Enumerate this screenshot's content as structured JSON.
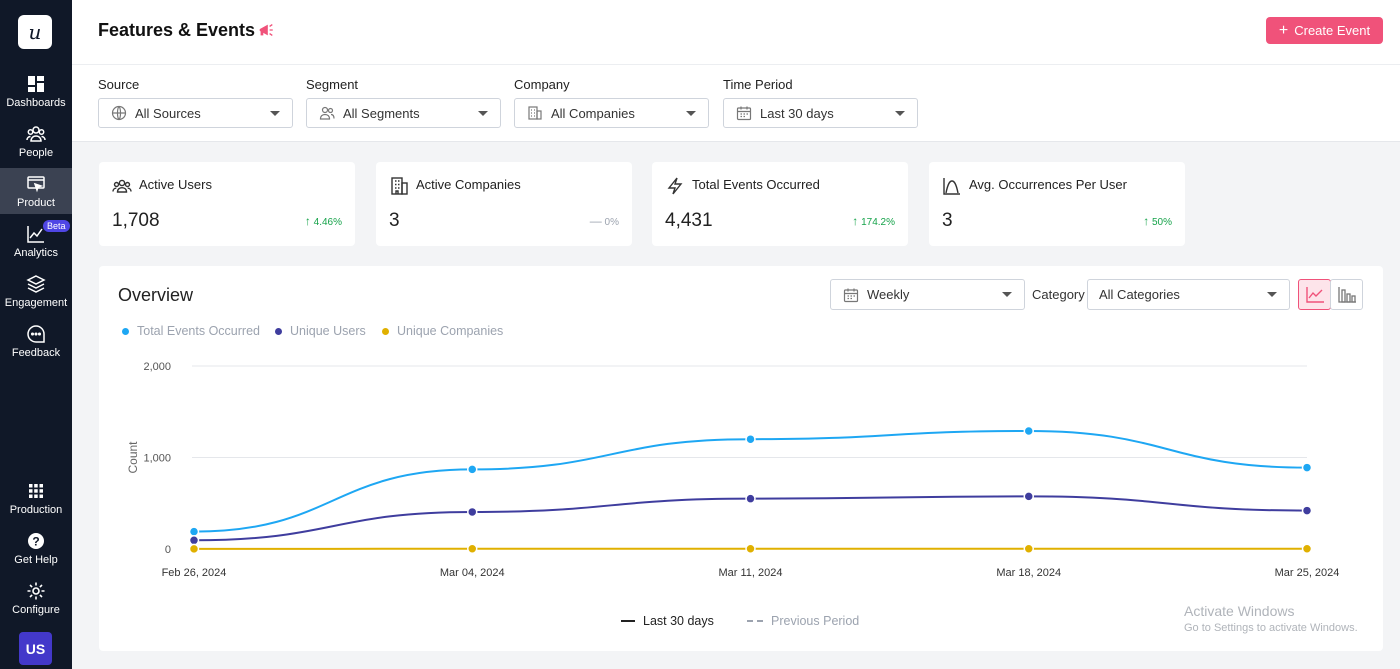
{
  "app": {
    "logo_text": "u",
    "user_initials": "US"
  },
  "sidebar": {
    "items": [
      {
        "label": "Dashboards",
        "icon": "dashboard-icon"
      },
      {
        "label": "People",
        "icon": "people-icon"
      },
      {
        "label": "Product",
        "icon": "product-icon",
        "active": true
      },
      {
        "label": "Analytics",
        "icon": "analytics-icon",
        "badge": "Beta"
      },
      {
        "label": "Engagement",
        "icon": "layers-icon"
      },
      {
        "label": "Feedback",
        "icon": "chat-icon"
      }
    ],
    "bottom": [
      {
        "label": "Production",
        "icon": "grid-icon"
      },
      {
        "label": "Get Help",
        "icon": "help-icon"
      },
      {
        "label": "Configure",
        "icon": "gear-icon"
      }
    ]
  },
  "header": {
    "title": "Features & Events",
    "create_label": "Create Event"
  },
  "filters": [
    {
      "label": "Source",
      "value": "All Sources",
      "icon": "globe-icon"
    },
    {
      "label": "Segment",
      "value": "All Segments",
      "icon": "users-icon"
    },
    {
      "label": "Company",
      "value": "All Companies",
      "icon": "building-icon"
    },
    {
      "label": "Time Period",
      "value": "Last 30 days",
      "icon": "calendar-icon"
    }
  ],
  "stats": [
    {
      "title": "Active Users",
      "value": "1,708",
      "delta": "4.46%",
      "trend": "up",
      "icon": "users-icon"
    },
    {
      "title": "Active Companies",
      "value": "3",
      "delta": "0%",
      "trend": "flat",
      "icon": "building-icon"
    },
    {
      "title": "Total Events Occurred",
      "value": "4,431",
      "delta": "174.2%",
      "trend": "up",
      "icon": "bolt-icon"
    },
    {
      "title": "Avg. Occurrences Per User",
      "value": "3",
      "delta": "50%",
      "trend": "up",
      "icon": "curve-icon"
    }
  ],
  "overview": {
    "title": "Overview",
    "interval": "Weekly",
    "category_label": "Category",
    "category_value": "All Categories",
    "period_current": "Last 30 days",
    "period_previous": "Previous Period"
  },
  "watermark": {
    "title": "Activate Windows",
    "subtitle": "Go to Settings to activate Windows."
  },
  "chart_data": {
    "type": "line",
    "ylabel": "Count",
    "ylim": [
      0,
      2000
    ],
    "yticks": [
      "0",
      "1,000",
      "2,000"
    ],
    "categories": [
      "Feb 26, 2024",
      "Mar 04, 2024",
      "Mar 11, 2024",
      "Mar 18, 2024",
      "Mar 25, 2024"
    ],
    "series": [
      {
        "name": "Total Events Occurred",
        "color": "#1ea7f3",
        "values": [
          190,
          870,
          1200,
          1290,
          890
        ]
      },
      {
        "name": "Unique Users",
        "color": "#3f3d9e",
        "values": [
          95,
          405,
          550,
          575,
          420
        ]
      },
      {
        "name": "Unique Companies",
        "color": "#e0b000",
        "values": [
          1,
          3,
          3,
          3,
          3
        ]
      }
    ],
    "legend_position": "top-left",
    "grid": true
  }
}
